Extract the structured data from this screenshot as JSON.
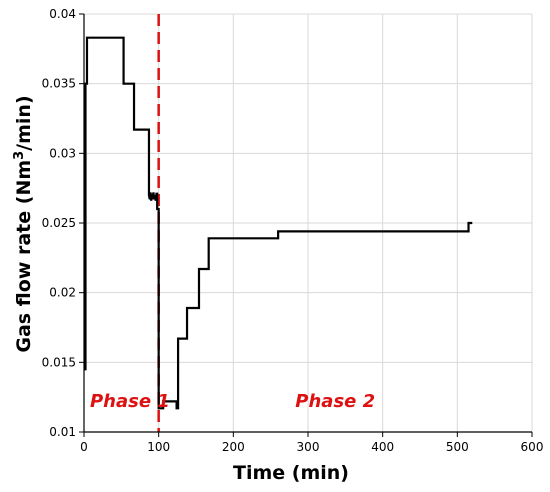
{
  "chart_data": {
    "type": "line",
    "title": "",
    "xlabel": "Time (min)",
    "ylabel_main": "Gas flow rate (Nm",
    "ylabel_sup": "3",
    "ylabel_tail": "/min)",
    "xlim": [
      0,
      600
    ],
    "ylim": [
      0.01,
      0.04
    ],
    "grid": true,
    "x_ticks": [
      0,
      100,
      200,
      300,
      400,
      500,
      600
    ],
    "x_tick_labels": [
      "0",
      "100",
      "200",
      "300",
      "400",
      "500",
      "600"
    ],
    "y_ticks": [
      0.01,
      0.015,
      0.02,
      0.025,
      0.03,
      0.035,
      0.04
    ],
    "y_tick_labels": [
      "0.01",
      "0.015",
      "0.02",
      "0.025",
      "0.03",
      "0.035",
      "0.04"
    ],
    "line_color": "#000000",
    "series": [
      {
        "x": [
          0,
          2,
          2,
          4,
          4,
          53,
          53,
          67,
          67,
          87,
          87,
          88,
          89,
          90,
          91,
          92,
          93,
          94,
          95,
          96,
          97,
          98,
          98,
          100,
          100,
          106,
          106,
          124,
          124,
          126,
          126,
          138,
          138,
          154,
          154,
          167,
          167,
          260,
          260,
          515,
          515,
          520
        ],
        "y": [
          0.0145,
          0.0145,
          0.035,
          0.035,
          0.0383,
          0.0383,
          0.035,
          0.035,
          0.0317,
          0.0317,
          0.027,
          0.0267,
          0.0272,
          0.0266,
          0.0271,
          0.0267,
          0.0272,
          0.0267,
          0.027,
          0.0266,
          0.0271,
          0.0271,
          0.026,
          0.026,
          0.0117,
          0.0117,
          0.0122,
          0.0122,
          0.0117,
          0.0117,
          0.0167,
          0.0167,
          0.0189,
          0.0189,
          0.0217,
          0.0217,
          0.0239,
          0.0239,
          0.0244,
          0.0244,
          0.025,
          0.025
        ]
      }
    ],
    "divider": {
      "x": 100,
      "color": "#dd1111"
    },
    "annotations": [
      {
        "text": "Phase 1",
        "x": 8,
        "y": 0.0118,
        "color": "#dd1111"
      },
      {
        "text": "Phase 2",
        "x": 283,
        "y": 0.0118,
        "color": "#dd1111"
      }
    ]
  }
}
